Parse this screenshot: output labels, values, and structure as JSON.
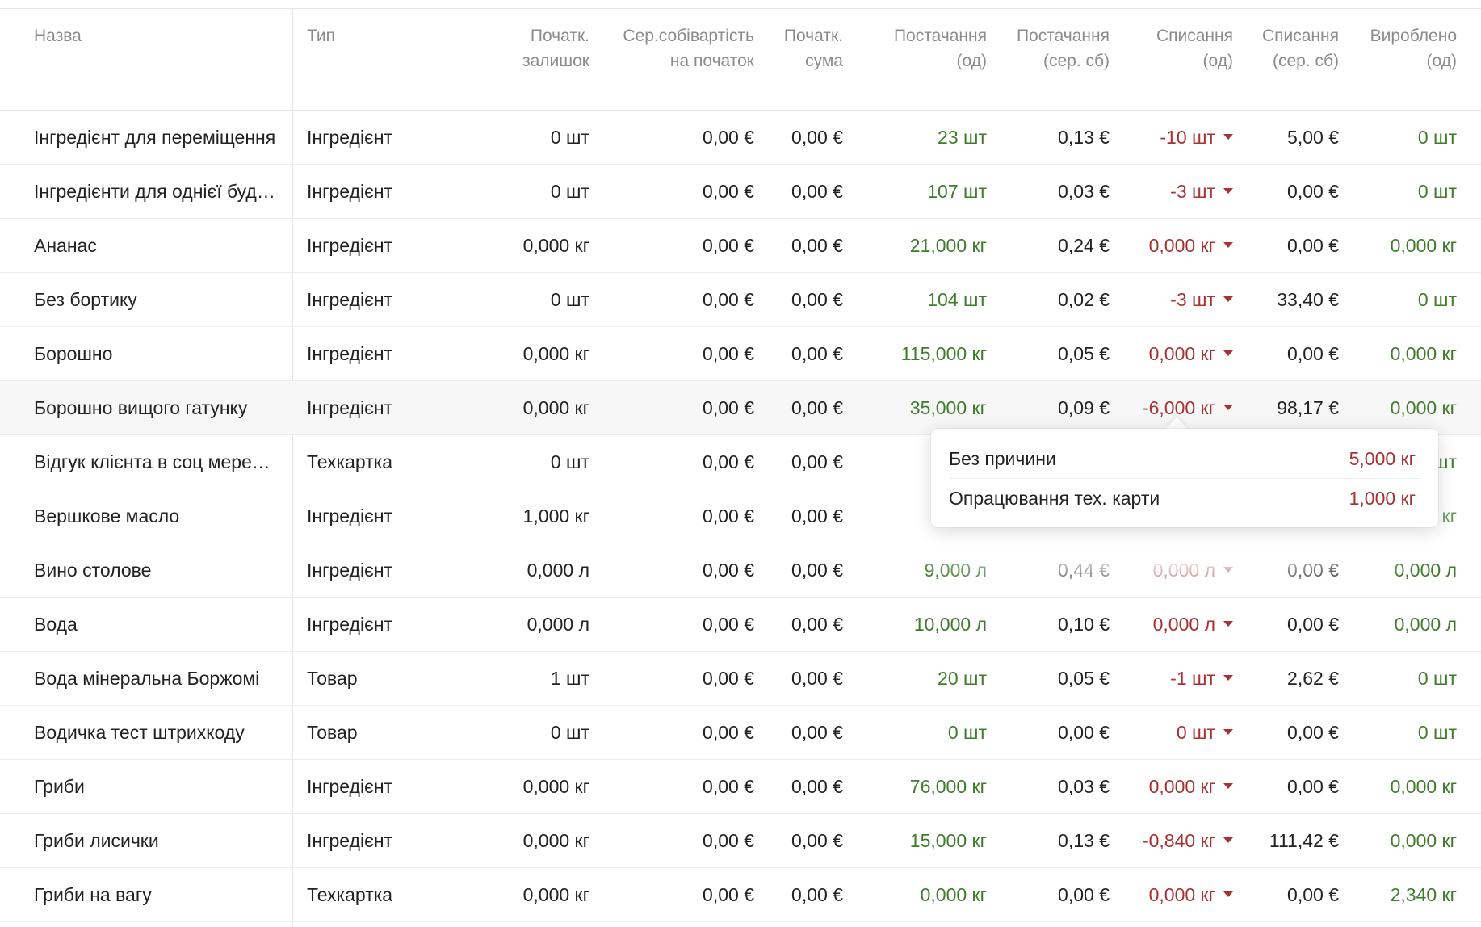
{
  "columns": {
    "name": "Назва",
    "type": "Тип",
    "init_qty": [
      "Початк.",
      "залишок"
    ],
    "init_avg_cost": [
      "Сер.собівартість",
      "на початок"
    ],
    "init_sum": [
      "Початк.",
      "сума"
    ],
    "supply_qty": [
      "Постачання",
      "(од)"
    ],
    "supply_cost": [
      "Постачання",
      "(сер. сб)"
    ],
    "writeoff_qty": [
      "Списання",
      "(од)"
    ],
    "writeoff_cost": [
      "Списання",
      "(сер. сб)"
    ],
    "produced_qty": [
      "Вироблено",
      "(од)"
    ]
  },
  "rows": [
    {
      "name": "Інгредієнт для переміщення",
      "type": "Інгредієнт",
      "init_qty": "0 шт",
      "init_avg_cost": "0,00 €",
      "init_sum": "0,00 €",
      "supply_qty": "23 шт",
      "supply_cost": "0,13 €",
      "writeoff_qty": "-10 шт",
      "writeoff_cost": "5,00 €",
      "produced_qty": "0 шт"
    },
    {
      "name": "Інгредієнти для однієї будь-якої",
      "type": "Інгредієнт",
      "init_qty": "0 шт",
      "init_avg_cost": "0,00 €",
      "init_sum": "0,00 €",
      "supply_qty": "107 шт",
      "supply_cost": "0,03 €",
      "writeoff_qty": "-3 шт",
      "writeoff_cost": "0,00 €",
      "produced_qty": "0 шт"
    },
    {
      "name": "Ананас",
      "type": "Інгредієнт",
      "init_qty": "0,000 кг",
      "init_avg_cost": "0,00 €",
      "init_sum": "0,00 €",
      "supply_qty": "21,000 кг",
      "supply_cost": "0,24 €",
      "writeoff_qty": "0,000 кг",
      "writeoff_cost": "0,00 €",
      "produced_qty": "0,000 кг"
    },
    {
      "name": "Без бортику",
      "type": "Інгредієнт",
      "init_qty": "0 шт",
      "init_avg_cost": "0,00 €",
      "init_sum": "0,00 €",
      "supply_qty": "104 шт",
      "supply_cost": "0,02 €",
      "writeoff_qty": "-3 шт",
      "writeoff_cost": "33,40 €",
      "produced_qty": "0 шт"
    },
    {
      "name": "Борошно",
      "type": "Інгредієнт",
      "init_qty": "0,000 кг",
      "init_avg_cost": "0,00 €",
      "init_sum": "0,00 €",
      "supply_qty": "115,000 кг",
      "supply_cost": "0,05 €",
      "writeoff_qty": "0,000 кг",
      "writeoff_cost": "0,00 €",
      "produced_qty": "0,000 кг"
    },
    {
      "name": "Борошно вищого гатунку",
      "type": "Інгредієнт",
      "init_qty": "0,000 кг",
      "init_avg_cost": "0,00 €",
      "init_sum": "0,00 €",
      "supply_qty": "35,000 кг",
      "supply_cost": "0,09 €",
      "writeoff_qty": "-6,000 кг",
      "writeoff_cost": "98,17 €",
      "produced_qty": "0,000 кг",
      "highlight": true
    },
    {
      "name": "Відгук клієнта в соц мережах",
      "type": "Техкартка",
      "init_qty": "0 шт",
      "init_avg_cost": "0,00 €",
      "init_sum": "0,00 €",
      "supply_qty": "",
      "supply_cost": "",
      "writeoff_qty": "",
      "writeoff_cost": "",
      "produced_qty": "шт"
    },
    {
      "name": "Вершкове масло",
      "type": "Інгредієнт",
      "init_qty": "1,000 кг",
      "init_avg_cost": "0,00 €",
      "init_sum": "0,00 €",
      "supply_qty": "15,",
      "supply_cost": "",
      "writeoff_qty": "",
      "writeoff_cost": "",
      "produced_qty": "кг"
    },
    {
      "name": "Вино столове",
      "type": "Інгредієнт",
      "init_qty": "0,000 л",
      "init_avg_cost": "0,00 €",
      "init_sum": "0,00 €",
      "supply_qty": "9,000 л",
      "supply_cost": "0,44 €",
      "writeoff_qty": "0,000 л",
      "writeoff_cost": "0,00 €",
      "produced_qty": "0,000 л"
    },
    {
      "name": "Вода",
      "type": "Інгредієнт",
      "init_qty": "0,000 л",
      "init_avg_cost": "0,00 €",
      "init_sum": "0,00 €",
      "supply_qty": "10,000 л",
      "supply_cost": "0,10 €",
      "writeoff_qty": "0,000 л",
      "writeoff_cost": "0,00 €",
      "produced_qty": "0,000 л"
    },
    {
      "name": "Вода мінеральна Боржомі",
      "type": "Товар",
      "init_qty": "1 шт",
      "init_avg_cost": "0,00 €",
      "init_sum": "0,00 €",
      "supply_qty": "20 шт",
      "supply_cost": "0,05 €",
      "writeoff_qty": "-1 шт",
      "writeoff_cost": "2,62 €",
      "produced_qty": "0 шт"
    },
    {
      "name": "Водичка тест штрихкоду",
      "type": "Товар",
      "init_qty": "0 шт",
      "init_avg_cost": "0,00 €",
      "init_sum": "0,00 €",
      "supply_qty": "0 шт",
      "supply_cost": "0,00 €",
      "writeoff_qty": "0 шт",
      "writeoff_cost": "0,00 €",
      "produced_qty": "0 шт"
    },
    {
      "name": "Гриби",
      "type": "Інгредієнт",
      "init_qty": "0,000 кг",
      "init_avg_cost": "0,00 €",
      "init_sum": "0,00 €",
      "supply_qty": "76,000 кг",
      "supply_cost": "0,03 €",
      "writeoff_qty": "0,000 кг",
      "writeoff_cost": "0,00 €",
      "produced_qty": "0,000 кг"
    },
    {
      "name": "Гриби лисички",
      "type": "Інгредієнт",
      "init_qty": "0,000 кг",
      "init_avg_cost": "0,00 €",
      "init_sum": "0,00 €",
      "supply_qty": "15,000 кг",
      "supply_cost": "0,13 €",
      "writeoff_qty": "-0,840 кг",
      "writeoff_cost": "111,42 €",
      "produced_qty": "0,000 кг"
    },
    {
      "name": "Гриби на вагу",
      "type": "Техкартка",
      "init_qty": "0,000 кг",
      "init_avg_cost": "0,00 €",
      "init_sum": "0,00 €",
      "supply_qty": "0,000 кг",
      "supply_cost": "0,00 €",
      "writeoff_qty": "0,000 кг",
      "writeoff_cost": "0,00 €",
      "produced_qty": "2,340 кг"
    }
  ],
  "writeoff_popup": {
    "items": [
      {
        "label": "Без причини",
        "value": "5,000 кг"
      },
      {
        "label": "Опрацювання тех. карти",
        "value": "1,000 кг"
      }
    ]
  },
  "colors": {
    "positive": "#3e7c2c",
    "negative": "#a83232",
    "header_text": "#8b8b8b"
  }
}
